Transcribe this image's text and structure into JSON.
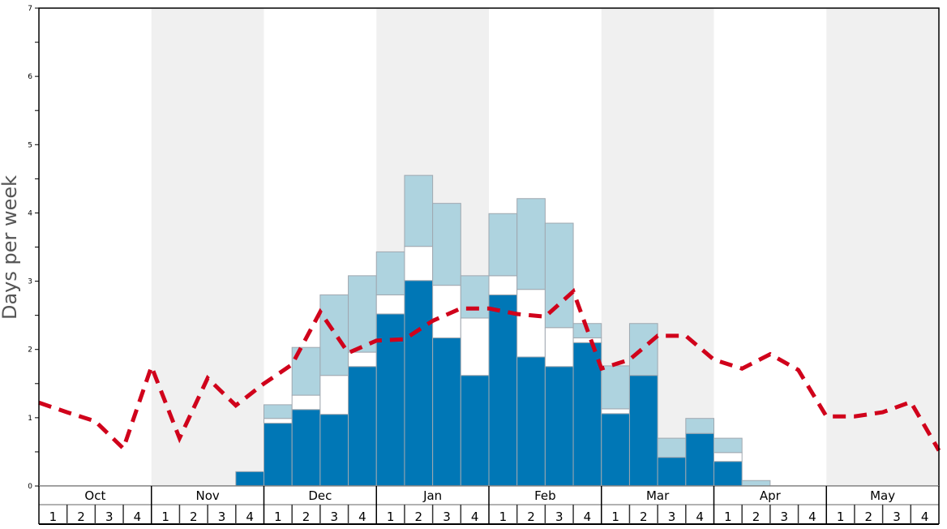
{
  "chart_data": {
    "type": "bar",
    "stacked": true,
    "title": "",
    "xlabel": "",
    "ylabel": "Days per week",
    "ylim": [
      0,
      7
    ],
    "yticks": [
      "0",
      "1",
      "2",
      "3",
      "4",
      "5",
      "6",
      "7"
    ],
    "months": [
      "Oct",
      "Nov",
      "Dec",
      "Jan",
      "Feb",
      "Mar",
      "Apr",
      "May"
    ],
    "weeks": [
      "1",
      "2",
      "3",
      "4"
    ],
    "colors": {
      "dark": "#0077b6",
      "white": "#ffffff",
      "light": "#aed3df",
      "line": "#d0021b",
      "band": "#f0f0f0",
      "barEdge": "#a0a8b0"
    },
    "series": [
      {
        "name": "dark",
        "values": [
          0,
          0,
          0,
          0,
          0,
          0,
          0,
          0.21,
          0.92,
          1.12,
          1.05,
          1.75,
          2.52,
          3.01,
          2.17,
          1.62,
          2.8,
          1.89,
          1.75,
          2.1,
          1.06,
          1.62,
          0.42,
          0.77,
          0.36,
          0,
          0,
          0,
          0,
          0,
          0,
          0
        ]
      },
      {
        "name": "white",
        "values": [
          0,
          0,
          0,
          0,
          0,
          0,
          0,
          0,
          0.07,
          0.21,
          0.57,
          0.21,
          0.28,
          0.5,
          0.77,
          0.84,
          0.28,
          0.99,
          0.57,
          0.07,
          0.07,
          0,
          0,
          0,
          0.13,
          0,
          0,
          0,
          0,
          0,
          0,
          0
        ]
      },
      {
        "name": "light",
        "values": [
          0,
          0,
          0,
          0,
          0,
          0,
          0,
          0,
          0.2,
          0.7,
          1.18,
          1.12,
          0.63,
          1.04,
          1.2,
          0.62,
          0.91,
          1.33,
          1.53,
          0.21,
          0.63,
          0.76,
          0.28,
          0.22,
          0.21,
          0.08,
          0,
          0,
          0,
          0,
          0,
          0
        ]
      }
    ],
    "line": {
      "name": "average",
      "style": "dashed",
      "values": [
        1.22,
        1.08,
        0.95,
        0.55,
        1.75,
        0.7,
        1.58,
        1.18,
        1.5,
        1.78,
        2.55,
        1.95,
        2.13,
        2.15,
        2.42,
        2.6,
        2.6,
        2.52,
        2.48,
        2.85,
        1.72,
        1.85,
        2.2,
        2.2,
        1.85,
        1.72,
        1.93,
        1.7,
        1.02,
        1.02,
        1.08,
        1.23,
        0.52
      ]
    },
    "grid": false,
    "legend": "none"
  }
}
